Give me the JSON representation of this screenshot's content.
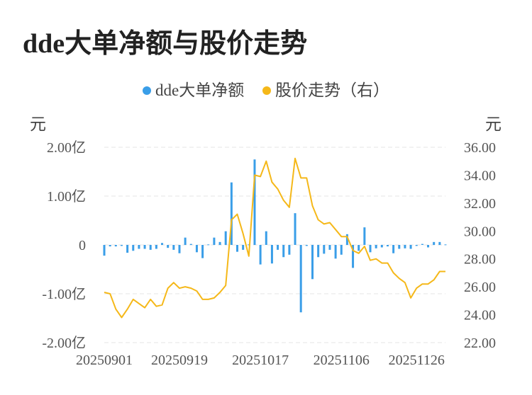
{
  "title": "dde大单净额与股价走势",
  "legend": [
    {
      "name": "dde大单净额",
      "color": "#3a9ee8"
    },
    {
      "name": "股价走势（右）",
      "color": "#f5b819"
    }
  ],
  "units": {
    "left": "元",
    "right": "元"
  },
  "chart_data": {
    "type": "bar+line",
    "x_ticks": [
      "20250901",
      "20250919",
      "20251017",
      "20251106",
      "20251126"
    ],
    "x_tick_index": [
      0,
      13,
      27,
      41,
      54
    ],
    "left_axis": {
      "ticks": [
        "2.00亿",
        "1.00亿",
        "0",
        "-1.00亿",
        "-2.00亿"
      ],
      "values": [
        2,
        1,
        0,
        -1,
        -2
      ],
      "ylim": [
        -2,
        2
      ]
    },
    "right_axis": {
      "ticks": [
        "36.00",
        "34.00",
        "32.00",
        "30.00",
        "28.00",
        "26.00",
        "24.00",
        "22.00"
      ],
      "values": [
        36,
        34,
        32,
        30,
        28,
        26,
        24,
        22
      ],
      "ylim": [
        22,
        36
      ]
    },
    "series": [
      {
        "name": "dde大单净额",
        "type": "bar",
        "color": "#3a9ee8",
        "unit": "亿元",
        "values": [
          -0.22,
          -0.03,
          -0.03,
          -0.02,
          -0.16,
          -0.12,
          -0.08,
          -0.08,
          -0.1,
          -0.08,
          0.04,
          -0.06,
          -0.1,
          -0.17,
          0.15,
          0.02,
          -0.15,
          -0.27,
          0.01,
          0.15,
          0.06,
          0.28,
          1.28,
          -0.14,
          -0.1,
          0.01,
          1.75,
          -0.4,
          0.28,
          -0.38,
          -0.1,
          -0.25,
          -0.2,
          0.65,
          -1.38,
          -0.02,
          -0.7,
          -0.25,
          -0.18,
          -0.1,
          -0.28,
          -0.2,
          0.22,
          -0.47,
          -0.12,
          0.36,
          -0.15,
          -0.07,
          -0.05,
          -0.03,
          -0.17,
          -0.08,
          -0.07,
          -0.08,
          -0.02,
          0.02,
          -0.05,
          0.06,
          0.06,
          0.01
        ]
      },
      {
        "name": "股价走势（右）",
        "type": "line",
        "color": "#f5b819",
        "values": [
          25.6,
          25.5,
          24.4,
          23.8,
          24.4,
          25.1,
          24.8,
          24.5,
          25.1,
          24.6,
          24.7,
          25.9,
          26.3,
          25.9,
          26.0,
          25.9,
          25.7,
          25.1,
          25.1,
          25.2,
          25.6,
          26.1,
          30.8,
          31.2,
          29.8,
          28.2,
          34.0,
          33.9,
          35.0,
          33.5,
          33.0,
          32.2,
          31.7,
          35.2,
          33.8,
          33.8,
          31.8,
          30.8,
          30.5,
          30.6,
          30.1,
          29.6,
          29.6,
          28.6,
          28.4,
          28.9,
          27.9,
          28.0,
          27.7,
          27.7,
          27.0,
          26.6,
          26.3,
          25.2,
          25.9,
          26.2,
          26.2,
          26.5,
          27.1,
          27.1
        ]
      }
    ],
    "grid": true,
    "legend_position": "top-center"
  }
}
